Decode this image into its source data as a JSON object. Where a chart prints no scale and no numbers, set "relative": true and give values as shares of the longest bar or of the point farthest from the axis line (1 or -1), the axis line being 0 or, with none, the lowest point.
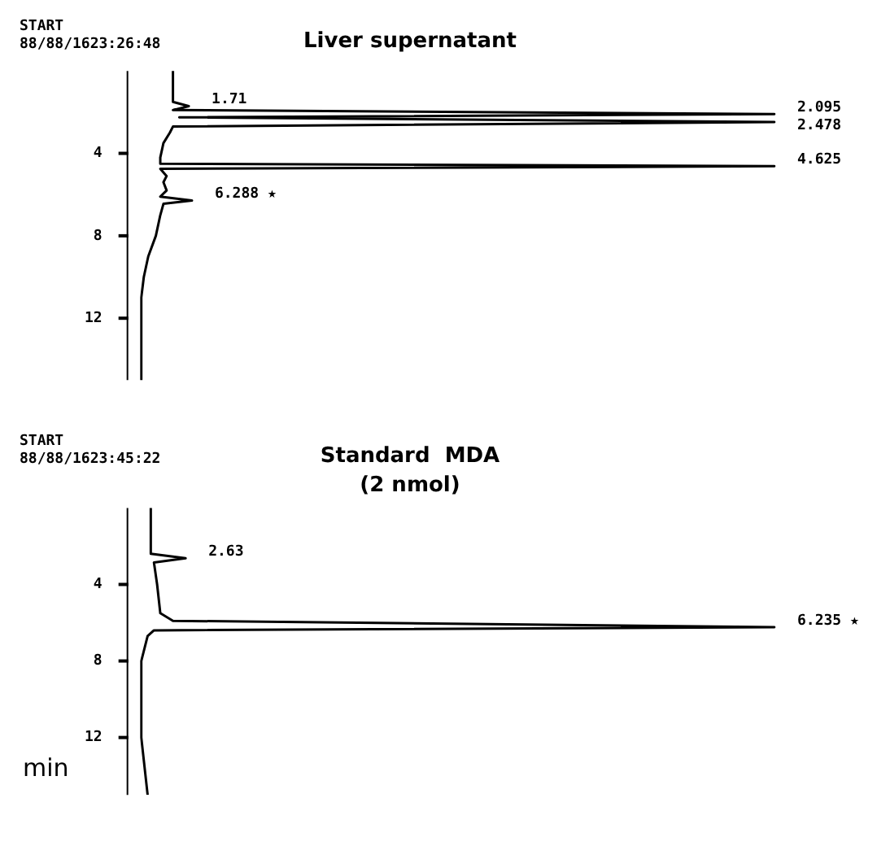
{
  "chart_data": [
    {
      "type": "line",
      "title": "Liver supernatant",
      "ylabel": null,
      "orientation": "horizontal",
      "relative": true,
      "tick_labels": "y",
      "marker": "none",
      "legend": false,
      "color": "#000000",
      "x": [
        0,
        1.5,
        1.71,
        1.9,
        2.095,
        2.25,
        2.478,
        2.7,
        3.0,
        3.5,
        4.2,
        4.5,
        4.625,
        4.75,
        5.1,
        5.4,
        5.8,
        6.1,
        6.288,
        6.45,
        7.0,
        8.0,
        9.0,
        10.0,
        11.0,
        15.0
      ],
      "values": [
        0.05,
        0.05,
        0.075,
        0.05,
        1,
        0.06,
        1,
        0.05,
        0.045,
        0.035,
        0.03,
        0.03,
        1,
        0.03,
        0.04,
        0.035,
        0.04,
        0.03,
        0.08,
        0.035,
        0.03,
        0.023,
        0.011,
        0.004,
        0,
        0
      ],
      "ylim": [
        15,
        0
      ],
      "yticks": [
        4,
        8,
        12
      ],
      "annotations": [
        "START",
        "88/88/1623:26:48",
        {
          "text": "1.71",
          "x": 0.075,
          "y": 1.71
        },
        {
          "text": "2.095",
          "x": 1,
          "y": 2.095
        },
        {
          "text": "2.478",
          "x": 1,
          "y": 2.478
        },
        {
          "text": "4.625",
          "x": 1,
          "y": 4.625
        },
        {
          "text": "6.288 ★",
          "x": 0.08,
          "y": 6.288
        }
      ]
    },
    {
      "type": "line",
      "title": "Standard  MDA",
      "subtitle": "(2 nmol)",
      "ylabel": "min",
      "orientation": "horizontal",
      "relative": true,
      "tick_labels": "y",
      "marker": "none",
      "legend": false,
      "color": "#000000",
      "x": [
        0,
        2.4,
        2.63,
        2.85,
        4.0,
        5.5,
        5.9,
        6.235,
        6.4,
        6.7,
        8.0,
        12.0,
        15.0
      ],
      "values": [
        0.015,
        0.015,
        0.07,
        0.02,
        0.025,
        0.03,
        0.05,
        1,
        0.02,
        0.01,
        0,
        0,
        0.01
      ],
      "ylim": [
        15,
        0
      ],
      "yticks": [
        4,
        8,
        12
      ],
      "annotations": [
        "START",
        "88/88/1623:45:22",
        {
          "text": "2.63",
          "x": 0.07,
          "y": 2.63
        },
        {
          "text": "6.235 ★",
          "x": 1,
          "y": 6.235
        }
      ]
    }
  ]
}
